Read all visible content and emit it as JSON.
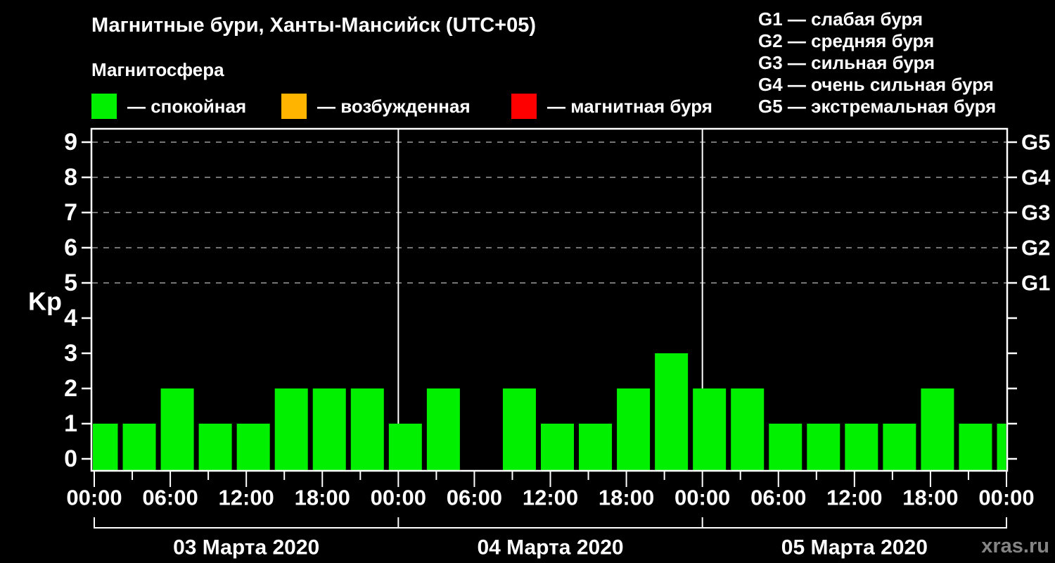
{
  "header": {
    "title": "Магнитные бури, Ханты-Мансийск (UTC+05)",
    "subtitle": "Магнитосфера",
    "legend": [
      {
        "state": "quiet",
        "color": "#00f000",
        "label": "— спокойная"
      },
      {
        "state": "unsettled",
        "color": "#ffb400",
        "label": "— возбужденная"
      },
      {
        "state": "storm",
        "color": "#ff0000",
        "label": "— магнитная буря"
      }
    ],
    "storm_scale_legend": [
      {
        "text": "G1 — слабая буря"
      },
      {
        "text": "G2 — средняя буря"
      },
      {
        "text": "G3 — сильная буря"
      },
      {
        "text": "G4 — очень сильная буря"
      },
      {
        "text": "G5 — экстремальная буря"
      }
    ]
  },
  "watermark": "xras.ru",
  "chart_data": {
    "type": "bar",
    "title": "Магнитные бури, Ханты-Мансийск (UTC+05)",
    "ylabel": "Kp",
    "ylim": [
      0,
      9
    ],
    "yticks": [
      0,
      1,
      2,
      3,
      4,
      5,
      6,
      7,
      8,
      9
    ],
    "grid_kp_levels": [
      5,
      6,
      7,
      8,
      9
    ],
    "grid_style": "dashed",
    "right_axis_labels": [
      {
        "kp": 5,
        "label": "G1"
      },
      {
        "kp": 6,
        "label": "G2"
      },
      {
        "kp": 7,
        "label": "G3"
      },
      {
        "kp": 8,
        "label": "G4"
      },
      {
        "kp": 9,
        "label": "G5"
      }
    ],
    "bar_color": "#00f000",
    "slot_hours": 3,
    "total_hours": 72,
    "x_label_step_hours": 6,
    "x_label_cycle": [
      "00:00",
      "06:00",
      "12:00",
      "18:00"
    ],
    "days": [
      {
        "date": "03 Марта 2020",
        "kp_values": [
          1,
          1,
          2,
          1,
          1,
          2,
          2,
          2
        ]
      },
      {
        "date": "04 Марта 2020",
        "kp_values": [
          1,
          2,
          null,
          2,
          1,
          1,
          2,
          3
        ]
      },
      {
        "date": "05 Марта 2020",
        "kp_values": [
          2,
          2,
          1,
          1,
          1,
          1,
          2,
          1
        ]
      }
    ],
    "next_day_partial_kp": 1,
    "legend_position": "top"
  }
}
